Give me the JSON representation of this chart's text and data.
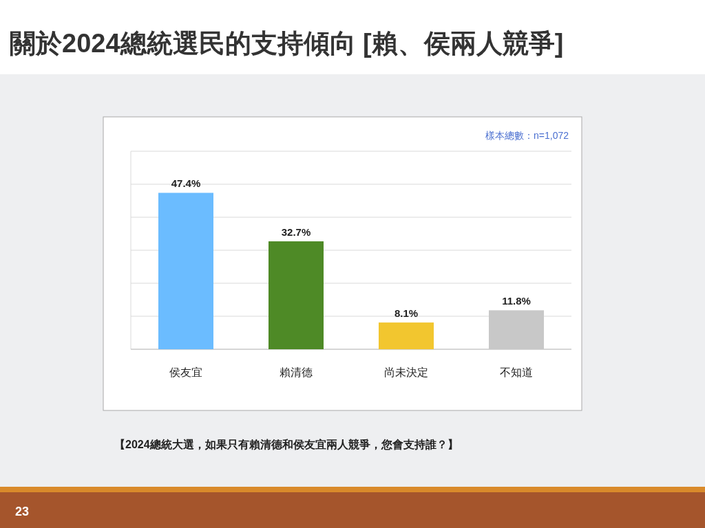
{
  "chart_data": {
    "type": "bar",
    "title": "關於2024總統選民的支持傾向 [賴、侯兩人競爭]",
    "categories": [
      "侯友宜",
      "賴清德",
      "尚未決定",
      "不知道"
    ],
    "values": [
      47.4,
      32.7,
      8.1,
      11.8
    ],
    "colors": [
      "#6bbcff",
      "#4e8a26",
      "#f2c62f",
      "#c8c8c8"
    ],
    "value_labels": [
      "47.4%",
      "32.7%",
      "8.1%",
      "11.8%"
    ],
    "ylim": [
      0,
      60
    ],
    "yticks": [
      {
        "value": 0,
        "label": null
      },
      {
        "value": 10,
        "label": null
      },
      {
        "value": 20,
        "label": null
      },
      {
        "value": 30,
        "label": null
      },
      {
        "value": 40,
        "label": null
      },
      {
        "value": 50,
        "label": null
      },
      {
        "value": 60,
        "label": null
      }
    ],
    "grid": "y",
    "annotations": [
      "樣本總數：n=1,072",
      "【2024總統大選，如果只有賴清德和侯友宜兩人競爭，您會支持誰？】",
      "23"
    ]
  }
}
